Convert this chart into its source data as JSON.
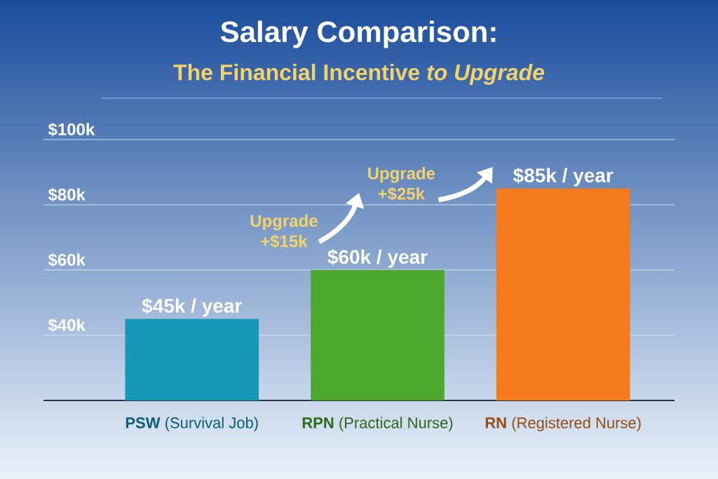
{
  "chart_data": {
    "type": "bar",
    "title": "Salary Comparison:",
    "subtitle": "The Financial Incentive *to Upgrade*",
    "categories": [
      "**PSW** (Survival Job)",
      "**RPN** (Practical Nurse)",
      "**RN** (Registered Nurse)"
    ],
    "values": [
      45,
      60,
      85
    ],
    "colors": [
      "#1597b8",
      "#4ca82c",
      "#f47a1c"
    ],
    "value_labels": [
      "$45k / year",
      "$60k / year",
      "$85k / year"
    ],
    "ylim": [
      20,
      100
    ],
    "yticks": [
      {
        "value": 40,
        "label": "$40k"
      },
      {
        "value": 60,
        "label": "$60k"
      },
      {
        "value": 80,
        "label": "$80k"
      },
      {
        "value": 100,
        "label": "$100k"
      }
    ],
    "grid": "y",
    "annotations": [
      "Upgrade +$15k",
      "Upgrade +$25k"
    ]
  }
}
